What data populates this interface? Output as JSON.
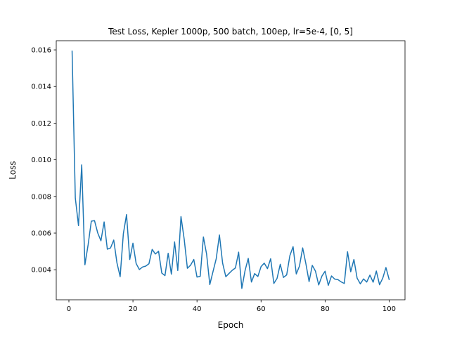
{
  "chart_data": {
    "type": "line",
    "title": "Test Loss, Kepler 1000p, 500 batch, 100ep, lr=5e-4, [0, 5]",
    "xlabel": "Epoch",
    "ylabel": "Loss",
    "xlim": [
      -3.95,
      104.95
    ],
    "ylim": [
      0.00236,
      0.0165
    ],
    "xticks": [
      0,
      20,
      40,
      60,
      80,
      100
    ],
    "xtick_labels": [
      "0",
      "20",
      "40",
      "60",
      "80",
      "100"
    ],
    "yticks": [
      0.004,
      0.006,
      0.008,
      0.01,
      0.012,
      0.014,
      0.016
    ],
    "ytick_labels": [
      "0.004",
      "0.006",
      "0.008",
      "0.010",
      "0.012",
      "0.014",
      "0.016"
    ],
    "grid": false,
    "legend": "none",
    "series": [
      {
        "color": "#1f77b4",
        "x": [
          1,
          2,
          3,
          4,
          5,
          6,
          7,
          8,
          9,
          10,
          11,
          12,
          13,
          14,
          15,
          16,
          17,
          18,
          19,
          20,
          21,
          22,
          23,
          24,
          25,
          26,
          27,
          28,
          29,
          30,
          31,
          32,
          33,
          34,
          35,
          36,
          37,
          38,
          39,
          40,
          41,
          42,
          43,
          44,
          45,
          46,
          47,
          48,
          49,
          50,
          51,
          52,
          53,
          54,
          55,
          56,
          57,
          58,
          59,
          60,
          61,
          62,
          63,
          64,
          65,
          66,
          67,
          68,
          69,
          70,
          71,
          72,
          73,
          74,
          75,
          76,
          77,
          78,
          79,
          80,
          81,
          82,
          83,
          84,
          85,
          86,
          87,
          88,
          89,
          90,
          91,
          92,
          93,
          94,
          95,
          96,
          97,
          98,
          99,
          100
        ],
        "values": [
          0.01593,
          0.00792,
          0.00641,
          0.00972,
          0.00427,
          0.00536,
          0.00665,
          0.00668,
          0.00601,
          0.00558,
          0.00661,
          0.00512,
          0.00519,
          0.00562,
          0.00438,
          0.00362,
          0.00596,
          0.00701,
          0.00456,
          0.00545,
          0.00434,
          0.00401,
          0.00415,
          0.0042,
          0.00433,
          0.00511,
          0.00486,
          0.00501,
          0.00382,
          0.00368,
          0.0049,
          0.00376,
          0.00552,
          0.00396,
          0.0069,
          0.00567,
          0.00408,
          0.00425,
          0.00456,
          0.0036,
          0.00364,
          0.00579,
          0.00485,
          0.00319,
          0.0039,
          0.0046,
          0.0059,
          0.00436,
          0.00362,
          0.0038,
          0.00397,
          0.0041,
          0.00496,
          0.00298,
          0.00395,
          0.00462,
          0.00333,
          0.00379,
          0.00363,
          0.00417,
          0.00436,
          0.00406,
          0.0046,
          0.00325,
          0.00353,
          0.0043,
          0.00358,
          0.00372,
          0.00477,
          0.00526,
          0.00377,
          0.0042,
          0.00519,
          0.00433,
          0.00335,
          0.00424,
          0.00392,
          0.00317,
          0.00365,
          0.00392,
          0.00315,
          0.00366,
          0.00349,
          0.00346,
          0.00334,
          0.00325,
          0.00498,
          0.00389,
          0.00456,
          0.00354,
          0.00323,
          0.0035,
          0.00333,
          0.00371,
          0.00332,
          0.00393,
          0.00318,
          0.00354,
          0.00412,
          0.00347
        ]
      }
    ]
  }
}
